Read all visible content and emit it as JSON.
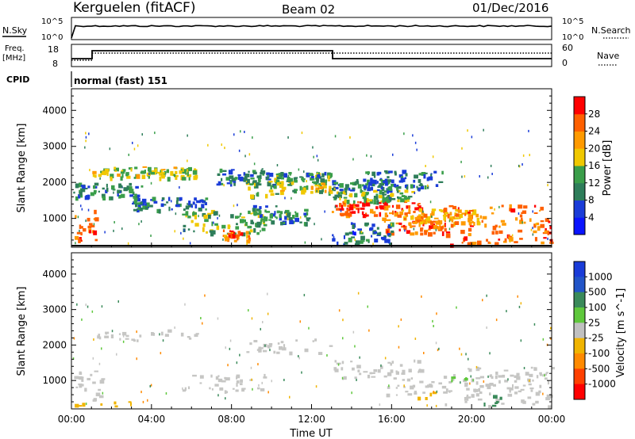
{
  "header": {
    "station": "Kerguelen (fitACF)",
    "beam": "Beam 02",
    "date": "01/Dec/2016"
  },
  "noise_panel": {
    "left_label": "N.Sky",
    "right_label": "N.Search",
    "left_ticks": [
      "10^5",
      "10^0"
    ],
    "right_ticks": [
      "10^5",
      "10^0"
    ]
  },
  "freq_panel": {
    "left_label_line1": "Freq.",
    "left_label_line2": "[MHz]",
    "left_ticks": [
      "18",
      "8"
    ],
    "right_label": "Nave",
    "right_ticks": [
      "60",
      "0"
    ]
  },
  "cpid_panel": {
    "label": "CPID",
    "mode": "normal (fast) 151"
  },
  "colors": {
    "power": [
      "#0a14ff",
      "#1a3cd8",
      "#2e7d5a",
      "#3a9e4a",
      "#f0c800",
      "#ff9a00",
      "#ff6000",
      "#ff0000"
    ],
    "velocity": [
      "#1a3cd8",
      "#2255c8",
      "#3a8a5a",
      "#5fc83c",
      "#c0c0c0",
      "#f0b400",
      "#ff8a00",
      "#ff4000",
      "#ff0000"
    ],
    "scatter_grey": "#c6c6c4",
    "dark": "#000000"
  },
  "chart_data": [
    {
      "type": "heatmap",
      "name": "power",
      "ylabel": "Slant Range [km]",
      "yticks": [
        "1000",
        "2000",
        "3000",
        "4000"
      ],
      "yvalues": [
        1000,
        2000,
        3000,
        4000
      ],
      "ylim": [
        200,
        4600
      ],
      "xlim": [
        0,
        24
      ],
      "colorbar_label": "Power [dB]",
      "colorbar_ticks": [
        "4",
        "8",
        "12",
        "16",
        "20",
        "24",
        "28"
      ],
      "colorbar_values": [
        4,
        8,
        12,
        16,
        20,
        24,
        28
      ],
      "colorbar_range": [
        0,
        32
      ],
      "bands": [
        {
          "t0": 0.0,
          "t1": 1.2,
          "r0": 400,
          "r1": 1300,
          "level": 26
        },
        {
          "t0": 0.0,
          "t1": 3.5,
          "r0": 1600,
          "r1": 2000,
          "level": 10
        },
        {
          "t0": 1.0,
          "t1": 6.3,
          "r0": 2150,
          "r1": 2450,
          "level": 17
        },
        {
          "t0": 3.0,
          "t1": 6.8,
          "r0": 1250,
          "r1": 1600,
          "level": 9
        },
        {
          "t0": 5.5,
          "t1": 9.8,
          "r0": 600,
          "r1": 1300,
          "level": 14
        },
        {
          "t0": 7.5,
          "t1": 9.0,
          "r0": 400,
          "r1": 700,
          "level": 24
        },
        {
          "t0": 7.2,
          "t1": 10.2,
          "r0": 1950,
          "r1": 2400,
          "level": 9
        },
        {
          "t0": 8.7,
          "t1": 10.2,
          "r0": 1650,
          "r1": 2150,
          "level": 15
        },
        {
          "t0": 10.2,
          "t1": 12.9,
          "r0": 1750,
          "r1": 2050,
          "level": 16
        },
        {
          "t0": 10.0,
          "t1": 12.9,
          "r0": 2050,
          "r1": 2300,
          "level": 12
        },
        {
          "t0": 8.8,
          "t1": 11.8,
          "r0": 900,
          "r1": 1400,
          "level": 11
        },
        {
          "t0": 13.0,
          "t1": 17.5,
          "r0": 1100,
          "r1": 1500,
          "level": 27
        },
        {
          "t0": 13.0,
          "t1": 17.0,
          "r0": 1500,
          "r1": 1800,
          "level": 14
        },
        {
          "t0": 13.0,
          "t1": 16.0,
          "r0": 1800,
          "r1": 2100,
          "level": 10
        },
        {
          "t0": 14.5,
          "t1": 18.5,
          "r0": 1850,
          "r1": 2350,
          "level": 9
        },
        {
          "t0": 15.5,
          "t1": 18.5,
          "r0": 600,
          "r1": 1100,
          "level": 25
        },
        {
          "t0": 16.5,
          "t1": 20.5,
          "r0": 900,
          "r1": 1300,
          "level": 21
        },
        {
          "t0": 18.5,
          "t1": 24.0,
          "r0": 300,
          "r1": 1400,
          "level": 26
        },
        {
          "t0": 13.0,
          "t1": 16.0,
          "r0": 300,
          "r1": 900,
          "level": 8
        }
      ]
    },
    {
      "type": "heatmap",
      "name": "velocity",
      "ylabel": "Slant Range [km]",
      "yticks": [
        "1000",
        "2000",
        "3000",
        "4000"
      ],
      "yvalues": [
        1000,
        2000,
        3000,
        4000
      ],
      "ylim": [
        200,
        4600
      ],
      "xlim": [
        0,
        24
      ],
      "xlabel": "Time UT",
      "xticks": [
        "00:00",
        "04:00",
        "08:00",
        "12:00",
        "16:00",
        "20:00",
        "00:00"
      ],
      "xvalues": [
        0,
        4,
        8,
        12,
        16,
        20,
        24
      ],
      "colorbar_label": "Velocity [m s^-1]",
      "colorbar_ticks": [
        "1000",
        "500",
        "100",
        "25",
        "-25",
        "-100",
        "-500",
        "-1000"
      ],
      "bands": [
        {
          "t0": 0.0,
          "t1": 1.5,
          "r0": 400,
          "r1": 1300,
          "vel": 0
        },
        {
          "t0": 1.0,
          "t1": 6.3,
          "r0": 2150,
          "r1": 2450,
          "vel": 0
        },
        {
          "t0": 5.5,
          "t1": 9.8,
          "r0": 700,
          "r1": 1200,
          "vel": 0
        },
        {
          "t0": 8.7,
          "t1": 12.9,
          "r0": 1800,
          "r1": 2200,
          "vel": 0
        },
        {
          "t0": 13.0,
          "t1": 17.5,
          "r0": 1100,
          "r1": 1600,
          "vel": 0
        },
        {
          "t0": 15.5,
          "t1": 18.5,
          "r0": 600,
          "r1": 1100,
          "vel": 0
        },
        {
          "t0": 18.5,
          "t1": 24.0,
          "r0": 300,
          "r1": 1400,
          "vel": 0
        },
        {
          "t0": 18.8,
          "t1": 19.7,
          "r0": 900,
          "r1": 1150,
          "vel": 80
        },
        {
          "t0": 17.0,
          "t1": 18.2,
          "r0": 500,
          "r1": 700,
          "vel": -80
        },
        {
          "t0": 20.5,
          "t1": 21.6,
          "r0": 300,
          "r1": 600,
          "vel": 150
        },
        {
          "t0": 0.0,
          "t1": 3.0,
          "r0": 300,
          "r1": 450,
          "vel": -60
        }
      ]
    }
  ]
}
